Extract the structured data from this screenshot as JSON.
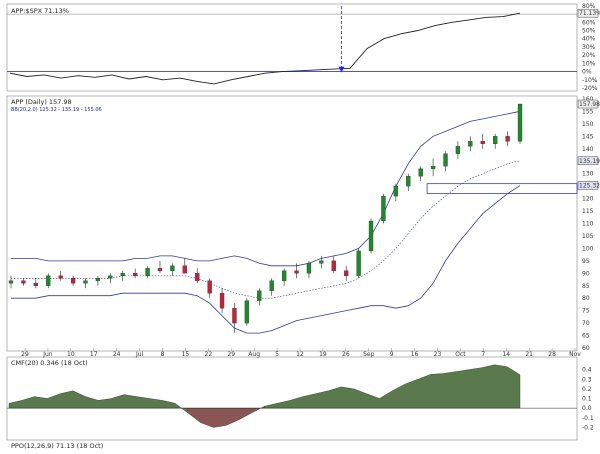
{
  "chart_data": [
    {
      "type": "line",
      "title": "APP:$SPX 71.13%",
      "ylim": [
        -20,
        75
      ],
      "y_ticks": [
        "80%",
        "60%",
        "50%",
        "40%",
        "30%",
        "20%",
        "10%",
        "0%",
        "-10%",
        "-20%"
      ],
      "last_value_label": "71.13%",
      "zero_line": 0,
      "marker_date_index": 19.5,
      "x": [
        0,
        1,
        2,
        3,
        4,
        5,
        6,
        7,
        8,
        9,
        10,
        11,
        12,
        13,
        14,
        15,
        16,
        17,
        18,
        19,
        20,
        21,
        22,
        23,
        24,
        25,
        26,
        27,
        28,
        29,
        30
      ],
      "values": [
        -2,
        -6,
        -4,
        -8,
        -5,
        -7,
        -4,
        -9,
        -6,
        -10,
        -8,
        -12,
        -15,
        -10,
        -6,
        -2,
        0,
        1,
        2,
        3,
        4,
        28,
        40,
        46,
        50,
        56,
        60,
        63,
        66,
        67,
        71.13
      ],
      "series": [
        {
          "name": "APP:$SPX",
          "color": "#222222"
        }
      ]
    },
    {
      "type": "candlestick",
      "title": "APP (Daily) 157.98",
      "bb_label": "BB(20,2.0) 125.32 - 135.19 - 155.06",
      "ylim": [
        60,
        160
      ],
      "y_ticks": [
        60,
        65,
        70,
        75,
        80,
        85,
        90,
        95,
        100,
        105,
        110,
        115,
        120,
        125,
        130,
        135,
        140,
        145,
        150,
        155,
        160
      ],
      "last_price_label": "157.98",
      "upper_band_label": "155.06",
      "mid_band_label": "135.19",
      "lower_band_label": "125.32",
      "x_ticks": [
        "29",
        "Jun",
        "10",
        "17",
        "24",
        "Jul",
        "8",
        "15",
        "22",
        "29",
        "Aug",
        "5",
        "12",
        "19",
        "26",
        "Sep",
        "9",
        "16",
        "23",
        "Oct",
        "7",
        "14",
        "21",
        "28",
        "Nov"
      ],
      "candles": [
        [
          86,
          89,
          84,
          87
        ],
        [
          87,
          88,
          85,
          86
        ],
        [
          86,
          88,
          84,
          85
        ],
        [
          85,
          90,
          84,
          89
        ],
        [
          89,
          91,
          87,
          88
        ],
        [
          88,
          89,
          85,
          86
        ],
        [
          86,
          88,
          84,
          87
        ],
        [
          87,
          89,
          85,
          88
        ],
        [
          88,
          90,
          86,
          89
        ],
        [
          89,
          91,
          87,
          90
        ],
        [
          90,
          92,
          88,
          89
        ],
        [
          89,
          93,
          88,
          92
        ],
        [
          92,
          95,
          90,
          91
        ],
        [
          91,
          94,
          89,
          93
        ],
        [
          93,
          96,
          91,
          90
        ],
        [
          90,
          92,
          86,
          87
        ],
        [
          87,
          88,
          80,
          82
        ],
        [
          82,
          84,
          74,
          76
        ],
        [
          76,
          78,
          66,
          70
        ],
        [
          70,
          80,
          69,
          79
        ],
        [
          79,
          84,
          77,
          83
        ],
        [
          83,
          88,
          81,
          87
        ],
        [
          87,
          92,
          85,
          91
        ],
        [
          91,
          94,
          88,
          90
        ],
        [
          90,
          95,
          88,
          94
        ],
        [
          94,
          97,
          92,
          95
        ],
        [
          95,
          97,
          90,
          91
        ],
        [
          91,
          93,
          87,
          89
        ],
        [
          89,
          100,
          88,
          99
        ],
        [
          99,
          112,
          98,
          111
        ],
        [
          111,
          122,
          110,
          121
        ],
        [
          121,
          126,
          119,
          125
        ],
        [
          125,
          130,
          123,
          129
        ],
        [
          129,
          133,
          127,
          132
        ],
        [
          132,
          136,
          129,
          133
        ],
        [
          133,
          139,
          131,
          138
        ],
        [
          138,
          143,
          136,
          141
        ],
        [
          141,
          145,
          139,
          143
        ],
        [
          143,
          146,
          140,
          142
        ],
        [
          142,
          146,
          140,
          145
        ],
        [
          145,
          147,
          141,
          143
        ],
        [
          143,
          158,
          142,
          157.98
        ]
      ],
      "upper_band": [
        96,
        96,
        96,
        95,
        95,
        95,
        95,
        95,
        95,
        95,
        96,
        96,
        97,
        97,
        96,
        95,
        95,
        96,
        97,
        96,
        94,
        93,
        93,
        93,
        94,
        96,
        97,
        98,
        100,
        105,
        114,
        125,
        134,
        141,
        145,
        147,
        149,
        151,
        152,
        153,
        154,
        155.06
      ],
      "mid_band": [
        88,
        88,
        88,
        88,
        88,
        88,
        88,
        88,
        88,
        89,
        89,
        89,
        89,
        89,
        89,
        88,
        86,
        84,
        82,
        81,
        80,
        80,
        81,
        82,
        83,
        84,
        85,
        86,
        88,
        91,
        95,
        100,
        106,
        112,
        117,
        121,
        125,
        128,
        130,
        132,
        134,
        135.19
      ],
      "lower_band": [
        80,
        80,
        80,
        81,
        81,
        81,
        81,
        81,
        81,
        82,
        82,
        82,
        82,
        82,
        82,
        81,
        78,
        73,
        68,
        66,
        66,
        67,
        69,
        71,
        72,
        73,
        74,
        75,
        76,
        77,
        77,
        76,
        77,
        80,
        86,
        95,
        102,
        108,
        114,
        118,
        122,
        125.32
      ],
      "box": {
        "price_low": 122,
        "price_high": 126
      },
      "series": [
        {
          "name": "APP (Daily)"
        },
        {
          "name": "BB(20,2.0)"
        }
      ]
    },
    {
      "type": "area",
      "title": "CMF(20) 0.346 (18 Oct)",
      "ylim": [
        -0.3,
        0.5
      ],
      "y_ticks": [
        "0.4",
        "0.3",
        "0.2",
        "0.1",
        "0.0",
        "-0.1",
        "-0.2"
      ],
      "values": [
        0.05,
        0.08,
        0.12,
        0.1,
        0.15,
        0.18,
        0.12,
        0.08,
        0.1,
        0.14,
        0.12,
        0.1,
        0.08,
        0.05,
        -0.05,
        -0.15,
        -0.2,
        -0.18,
        -0.12,
        -0.05,
        0.02,
        0.05,
        0.08,
        0.12,
        0.15,
        0.18,
        0.22,
        0.2,
        0.15,
        0.1,
        0.18,
        0.25,
        0.3,
        0.35,
        0.36,
        0.38,
        0.4,
        0.42,
        0.45,
        0.43,
        0.346
      ],
      "series": [
        {
          "name": "CMF(20)",
          "positive_color": "#5a7a4e",
          "negative_color": "#8a5555"
        }
      ]
    }
  ],
  "footer_label": "PPO(12,26,9) 71.13 (18 Oct)"
}
